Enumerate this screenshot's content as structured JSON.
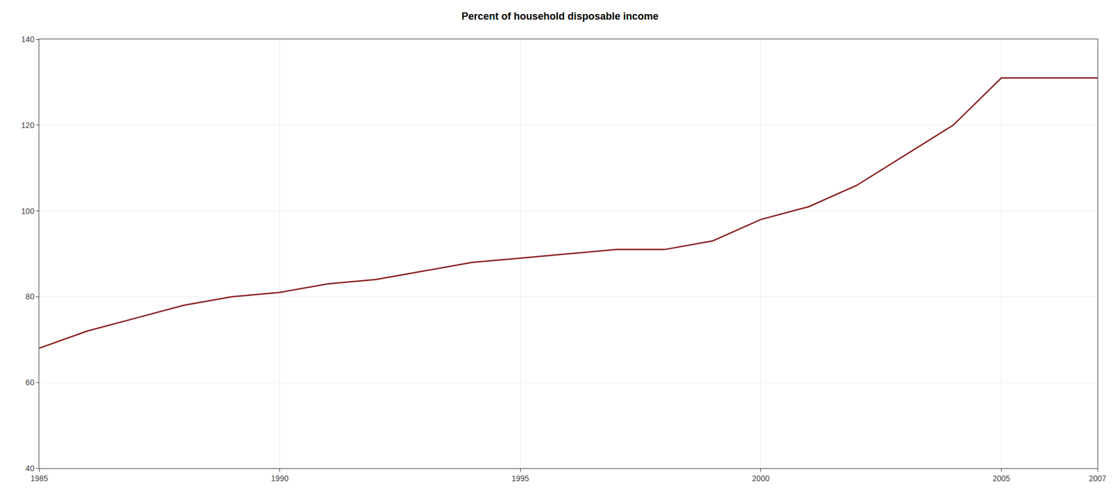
{
  "chart_data": {
    "type": "line",
    "title": "Percent of household disposable income",
    "x": [
      1985,
      1986,
      1987,
      1988,
      1989,
      1990,
      1991,
      1992,
      1993,
      1994,
      1995,
      1996,
      1997,
      1998,
      1999,
      2000,
      2001,
      2002,
      2003,
      2004,
      2005,
      2006,
      2007
    ],
    "values": [
      68,
      72,
      75,
      78,
      80,
      81,
      83,
      84,
      86,
      88,
      89,
      90,
      91,
      91,
      93,
      98,
      101,
      106,
      113,
      120,
      131,
      131,
      131
    ],
    "color": "#8B2020",
    "xlim": [
      1985,
      2007
    ],
    "ylim": [
      40,
      140
    ],
    "xticks": [
      1985,
      1990,
      1995,
      2000,
      2005,
      2007
    ],
    "yticks": [
      40,
      60,
      80,
      100,
      120,
      140
    ],
    "grid": true
  }
}
